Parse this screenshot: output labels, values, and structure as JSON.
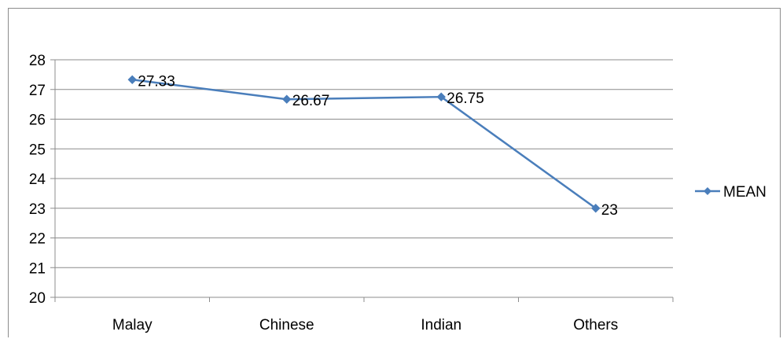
{
  "chart_data": {
    "type": "line",
    "categories": [
      "Malay",
      "Chinese",
      "Indian",
      "Others"
    ],
    "series": [
      {
        "name": "MEAN",
        "values": [
          27.33,
          26.67,
          26.75,
          23
        ],
        "labels": [
          "27.33",
          "26.67",
          "26.75",
          "23"
        ]
      }
    ],
    "ylim": [
      20,
      28
    ],
    "yticks": [
      20,
      21,
      22,
      23,
      24,
      25,
      26,
      27,
      28
    ],
    "grid": true,
    "legend_position": "right",
    "colors": {
      "series": "#4a7ebb",
      "grid": "#8c8c8c",
      "axis": "#8c8c8c"
    }
  }
}
